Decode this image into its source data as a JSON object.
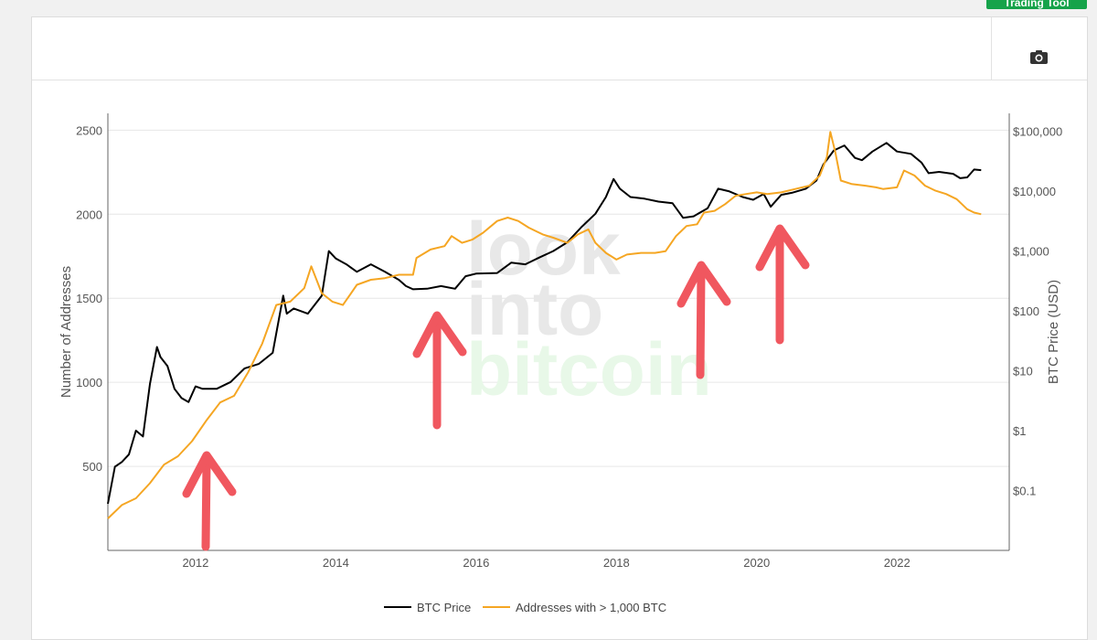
{
  "ui": {
    "trading_button_label": "Trading Tool",
    "camera_icon": "camera-icon"
  },
  "chart_data": {
    "type": "line",
    "title": "",
    "xlabel": "",
    "ylabel_left": "Number of Addresses",
    "ylabel_right": "BTC Price (USD)",
    "x_range": [
      2010.75,
      2023.6
    ],
    "y_left_range": [
      0,
      2600
    ],
    "y_right_range_log10": [
      -2,
      5.3
    ],
    "y_right_scale": "log",
    "grid": true,
    "legend_position": "bottom-center",
    "x_ticks": [
      {
        "value": 2012,
        "label": "2012"
      },
      {
        "value": 2014,
        "label": "2014"
      },
      {
        "value": 2016,
        "label": "2016"
      },
      {
        "value": 2018,
        "label": "2018"
      },
      {
        "value": 2020,
        "label": "2020"
      },
      {
        "value": 2022,
        "label": "2022"
      }
    ],
    "y_left_ticks": [
      {
        "value": 500,
        "label": "500"
      },
      {
        "value": 1000,
        "label": "1000"
      },
      {
        "value": 1500,
        "label": "1500"
      },
      {
        "value": 2000,
        "label": "2000"
      },
      {
        "value": 2500,
        "label": "2500"
      }
    ],
    "y_right_ticks": [
      {
        "value": 0.1,
        "label": "$0.1"
      },
      {
        "value": 1,
        "label": "$1"
      },
      {
        "value": 10,
        "label": "$10"
      },
      {
        "value": 100,
        "label": "$100"
      },
      {
        "value": 1000,
        "label": "$1,000"
      },
      {
        "value": 10000,
        "label": "$10,000"
      },
      {
        "value": 100000,
        "label": "$100,000"
      }
    ],
    "series": [
      {
        "name": "BTC Price",
        "color": "#000000",
        "axis": "right",
        "points": [
          [
            2010.75,
            0.06
          ],
          [
            2010.85,
            0.25
          ],
          [
            2010.95,
            0.3
          ],
          [
            2011.05,
            0.4
          ],
          [
            2011.15,
            1.0
          ],
          [
            2011.25,
            0.8
          ],
          [
            2011.35,
            6
          ],
          [
            2011.45,
            25
          ],
          [
            2011.5,
            17
          ],
          [
            2011.6,
            12
          ],
          [
            2011.7,
            5
          ],
          [
            2011.8,
            3.5
          ],
          [
            2011.9,
            3
          ],
          [
            2012.0,
            5.5
          ],
          [
            2012.1,
            5
          ],
          [
            2012.3,
            5
          ],
          [
            2012.5,
            6.5
          ],
          [
            2012.7,
            11
          ],
          [
            2012.9,
            13
          ],
          [
            2013.1,
            20
          ],
          [
            2013.25,
            180
          ],
          [
            2013.3,
            90
          ],
          [
            2013.4,
            110
          ],
          [
            2013.6,
            90
          ],
          [
            2013.8,
            180
          ],
          [
            2013.9,
            1000
          ],
          [
            2014.0,
            750
          ],
          [
            2014.15,
            600
          ],
          [
            2014.3,
            450
          ],
          [
            2014.5,
            600
          ],
          [
            2014.7,
            450
          ],
          [
            2014.9,
            330
          ],
          [
            2015.0,
            260
          ],
          [
            2015.1,
            230
          ],
          [
            2015.3,
            235
          ],
          [
            2015.5,
            260
          ],
          [
            2015.7,
            235
          ],
          [
            2015.85,
            380
          ],
          [
            2016.0,
            420
          ],
          [
            2016.3,
            430
          ],
          [
            2016.5,
            640
          ],
          [
            2016.7,
            600
          ],
          [
            2016.9,
            780
          ],
          [
            2017.1,
            1000
          ],
          [
            2017.3,
            1400
          ],
          [
            2017.5,
            2500
          ],
          [
            2017.7,
            4200
          ],
          [
            2017.85,
            8000
          ],
          [
            2017.96,
            16000
          ],
          [
            2018.05,
            11000
          ],
          [
            2018.2,
            8000
          ],
          [
            2018.4,
            7500
          ],
          [
            2018.6,
            6700
          ],
          [
            2018.8,
            6300
          ],
          [
            2018.95,
            3600
          ],
          [
            2019.1,
            3800
          ],
          [
            2019.3,
            5200
          ],
          [
            2019.45,
            11000
          ],
          [
            2019.6,
            10000
          ],
          [
            2019.8,
            8000
          ],
          [
            2019.95,
            7200
          ],
          [
            2020.1,
            9000
          ],
          [
            2020.2,
            5500
          ],
          [
            2020.35,
            8700
          ],
          [
            2020.5,
            9400
          ],
          [
            2020.7,
            11000
          ],
          [
            2020.85,
            15000
          ],
          [
            2020.95,
            28000
          ],
          [
            2021.1,
            48000
          ],
          [
            2021.25,
            58000
          ],
          [
            2021.4,
            36000
          ],
          [
            2021.5,
            33000
          ],
          [
            2021.65,
            46000
          ],
          [
            2021.85,
            64000
          ],
          [
            2022.0,
            46000
          ],
          [
            2022.2,
            42000
          ],
          [
            2022.35,
            30000
          ],
          [
            2022.45,
            20000
          ],
          [
            2022.6,
            21000
          ],
          [
            2022.8,
            19500
          ],
          [
            2022.9,
            16500
          ],
          [
            2023.0,
            17000
          ],
          [
            2023.1,
            23000
          ],
          [
            2023.2,
            22500
          ]
        ]
      },
      {
        "name": "Addresses with > 1,000 BTC",
        "color": "#f5a623",
        "axis": "left",
        "points": [
          [
            2010.75,
            190
          ],
          [
            2010.95,
            270
          ],
          [
            2011.15,
            310
          ],
          [
            2011.35,
            400
          ],
          [
            2011.55,
            510
          ],
          [
            2011.75,
            560
          ],
          [
            2011.95,
            650
          ],
          [
            2012.15,
            770
          ],
          [
            2012.35,
            880
          ],
          [
            2012.55,
            920
          ],
          [
            2012.75,
            1060
          ],
          [
            2012.95,
            1230
          ],
          [
            2013.15,
            1460
          ],
          [
            2013.35,
            1480
          ],
          [
            2013.55,
            1560
          ],
          [
            2013.65,
            1690
          ],
          [
            2013.8,
            1530
          ],
          [
            2013.95,
            1480
          ],
          [
            2014.1,
            1460
          ],
          [
            2014.3,
            1580
          ],
          [
            2014.5,
            1610
          ],
          [
            2014.7,
            1620
          ],
          [
            2014.9,
            1640
          ],
          [
            2015.1,
            1640
          ],
          [
            2015.15,
            1740
          ],
          [
            2015.35,
            1790
          ],
          [
            2015.55,
            1810
          ],
          [
            2015.65,
            1870
          ],
          [
            2015.8,
            1830
          ],
          [
            2015.95,
            1850
          ],
          [
            2016.1,
            1890
          ],
          [
            2016.3,
            1960
          ],
          [
            2016.45,
            1980
          ],
          [
            2016.6,
            1960
          ],
          [
            2016.75,
            1920
          ],
          [
            2016.95,
            1880
          ],
          [
            2017.1,
            1860
          ],
          [
            2017.3,
            1830
          ],
          [
            2017.45,
            1880
          ],
          [
            2017.6,
            1910
          ],
          [
            2017.7,
            1830
          ],
          [
            2017.85,
            1770
          ],
          [
            2018.0,
            1730
          ],
          [
            2018.15,
            1760
          ],
          [
            2018.35,
            1770
          ],
          [
            2018.55,
            1770
          ],
          [
            2018.7,
            1780
          ],
          [
            2018.85,
            1870
          ],
          [
            2019.0,
            1930
          ],
          [
            2019.15,
            1940
          ],
          [
            2019.25,
            2010
          ],
          [
            2019.4,
            2020
          ],
          [
            2019.55,
            2060
          ],
          [
            2019.7,
            2110
          ],
          [
            2019.85,
            2120
          ],
          [
            2020.0,
            2130
          ],
          [
            2020.15,
            2120
          ],
          [
            2020.35,
            2130
          ],
          [
            2020.55,
            2150
          ],
          [
            2020.75,
            2170
          ],
          [
            2020.9,
            2230
          ],
          [
            2021.0,
            2340
          ],
          [
            2021.05,
            2490
          ],
          [
            2021.12,
            2370
          ],
          [
            2021.2,
            2200
          ],
          [
            2021.35,
            2180
          ],
          [
            2021.55,
            2170
          ],
          [
            2021.7,
            2160
          ],
          [
            2021.8,
            2150
          ],
          [
            2022.0,
            2160
          ],
          [
            2022.1,
            2260
          ],
          [
            2022.25,
            2230
          ],
          [
            2022.4,
            2170
          ],
          [
            2022.55,
            2140
          ],
          [
            2022.7,
            2120
          ],
          [
            2022.85,
            2090
          ],
          [
            2023.0,
            2030
          ],
          [
            2023.1,
            2010
          ],
          [
            2023.2,
            2000
          ]
        ]
      }
    ],
    "legend": [
      "BTC Price",
      "Addresses with > 1,000 BTC"
    ],
    "watermark": [
      "look",
      "into",
      "bitcoin"
    ],
    "annotations": [
      "arrow",
      "arrow",
      "arrow",
      "arrow"
    ]
  }
}
